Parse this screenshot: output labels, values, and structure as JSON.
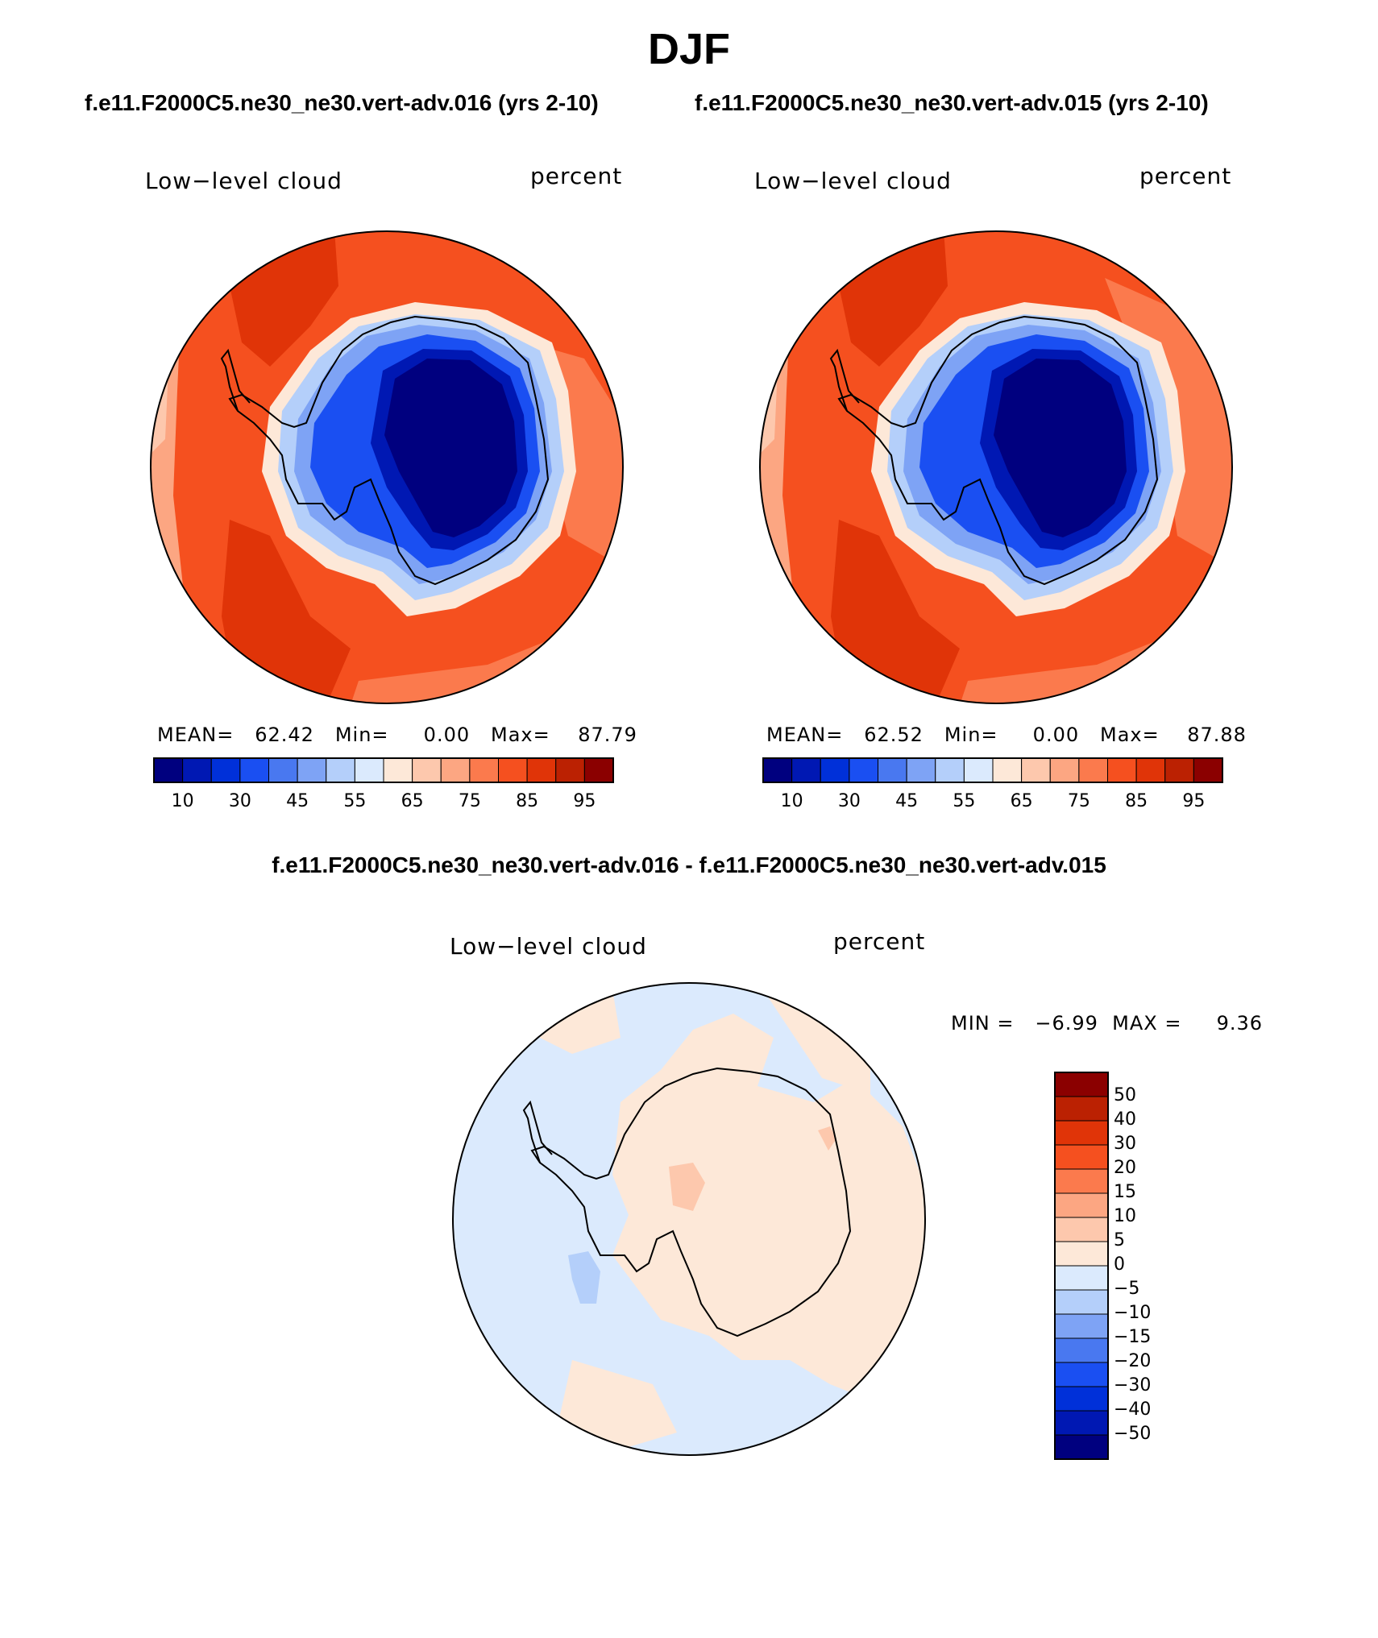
{
  "season": "DJF",
  "case_titles": [
    "f.e11.F2000C5.ne30_ne30.vert-adv.016 (yrs 2-10)",
    "f.e11.F2000C5.ne30_ne30.vert-adv.015 (yrs 2-10)"
  ],
  "diff_title": "f.e11.F2000C5.ne30_ne30.vert-adv.016 - f.e11.F2000C5.ne30_ne30.vert-adv.015",
  "panels": [
    {
      "variable": "Low−level cloud",
      "units": "percent",
      "stats": "MEAN=   62.42   Min=     0.00   Max=    87.79"
    },
    {
      "variable": "Low−level cloud",
      "units": "percent",
      "stats": "MEAN=   62.52   Min=     0.00   Max=    87.88"
    }
  ],
  "diff_panel": {
    "variable": "Low−level cloud",
    "units": "percent",
    "stats": "MIN =   −6.99  MAX =     9.36"
  },
  "colorbar_abs": {
    "colors": [
      "#00007f",
      "#0018b3",
      "#0030d9",
      "#1a4ff2",
      "#4978f0",
      "#7ea3f5",
      "#b4cffa",
      "#dbeafd",
      "#fde8d8",
      "#fdc8ad",
      "#fca682",
      "#fb7a4d",
      "#f5501f",
      "#e03408",
      "#bb2102",
      "#8b0000"
    ],
    "labels": [
      "10",
      "30",
      "45",
      "55",
      "65",
      "75",
      "85",
      "95"
    ]
  },
  "colorbar_diff": {
    "colors_top_to_bottom": [
      "#8b0000",
      "#bb2102",
      "#e03408",
      "#f5501f",
      "#fb7a4d",
      "#fca682",
      "#fdc8ad",
      "#fde8d8",
      "#dbeafd",
      "#b4cffa",
      "#7ea3f5",
      "#4978f0",
      "#1a4ff2",
      "#0030d9",
      "#0018b3",
      "#00007f"
    ],
    "labels_top_to_bottom": [
      "50",
      "40",
      "30",
      "20",
      "15",
      "10",
      "5",
      "0",
      "−5",
      "−10",
      "−15",
      "−20",
      "−30",
      "−40",
      "−50"
    ]
  },
  "map_colors": {
    "ocean_high": "#f5501f",
    "ocean_higher": "#e03408",
    "ocean_mid": "#fb7a4d",
    "ocean_edge": "#fca682",
    "fringe_light": "#fdc8ad",
    "fringe_white": "#fde8d8",
    "ice_edge": "#b4cffa",
    "ice_1": "#7ea3f5",
    "ice_2": "#4978f0",
    "ice_3": "#1a4ff2",
    "ice_4": "#0030d9",
    "ice_5": "#0018b3",
    "ice_core": "#00007f",
    "diff_neg": "#dbeafd",
    "diff_pos": "#fde8d8",
    "diff_pos2": "#fdc8ad",
    "diff_neg2": "#b4cffa"
  }
}
